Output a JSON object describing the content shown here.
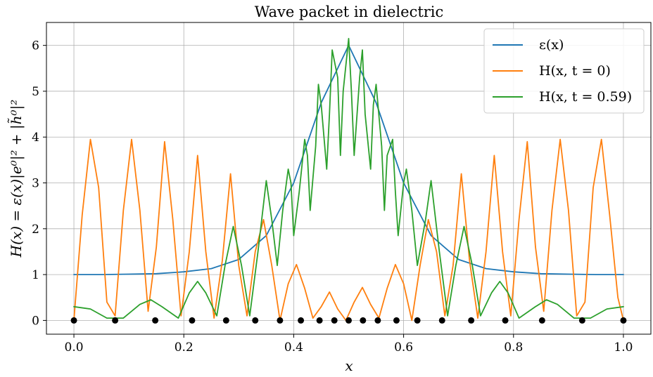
{
  "chart_data": {
    "type": "line",
    "title": "Wave packet in dielectric",
    "xlabel": "x",
    "ylabel": "H(x) = ε(x)|e⁰|² + |h̃⁰|²",
    "xlim": [
      -0.05,
      1.05
    ],
    "ylim": [
      -0.3,
      6.5
    ],
    "xticks": [
      0.0,
      0.2,
      0.4,
      0.6,
      0.8,
      1.0
    ],
    "xtick_labels": [
      "0.0",
      "0.2",
      "0.4",
      "0.6",
      "0.8",
      "1.0"
    ],
    "yticks": [
      0,
      1,
      2,
      3,
      4,
      5,
      6
    ],
    "ytick_labels": [
      "0",
      "1",
      "2",
      "3",
      "4",
      "5",
      "6"
    ],
    "grid": true,
    "legend_position": "top-right",
    "series": [
      {
        "name": "ε(x)",
        "color": "#1f77b4",
        "x": [
          0.0,
          0.05,
          0.1,
          0.15,
          0.2,
          0.25,
          0.3,
          0.35,
          0.4,
          0.45,
          0.5,
          0.55,
          0.6,
          0.65,
          0.7,
          0.75,
          0.8,
          0.85,
          0.9,
          0.95,
          1.0
        ],
        "y": [
          1.0,
          1.0,
          1.01,
          1.02,
          1.06,
          1.13,
          1.33,
          1.85,
          3.0,
          4.75,
          6.0,
          4.75,
          3.0,
          1.85,
          1.33,
          1.13,
          1.06,
          1.02,
          1.01,
          1.0,
          1.0
        ]
      },
      {
        "name": "H(x, t = 0)",
        "color": "#ff7f0e",
        "x": [
          0.0,
          0.015,
          0.03,
          0.045,
          0.06,
          0.075,
          0.09,
          0.105,
          0.12,
          0.135,
          0.15,
          0.165,
          0.18,
          0.195,
          0.21,
          0.225,
          0.24,
          0.255,
          0.27,
          0.285,
          0.3,
          0.315,
          0.33,
          0.345,
          0.36,
          0.375,
          0.39,
          0.405,
          0.42,
          0.435,
          0.45,
          0.465,
          0.48,
          0.495,
          0.51,
          0.525,
          0.54,
          0.555,
          0.57,
          0.585,
          0.6,
          0.615,
          0.63,
          0.645,
          0.66,
          0.675,
          0.69,
          0.705,
          0.72,
          0.735,
          0.75,
          0.765,
          0.78,
          0.795,
          0.81,
          0.825,
          0.84,
          0.855,
          0.87,
          0.885,
          0.9,
          0.915,
          0.93,
          0.945,
          0.96,
          0.975,
          0.99,
          1.0
        ],
        "y": [
          0.0,
          2.3,
          3.95,
          2.9,
          0.4,
          0.1,
          2.4,
          3.95,
          2.4,
          0.2,
          1.6,
          3.9,
          2.2,
          0.1,
          1.5,
          3.6,
          1.5,
          0.05,
          1.3,
          3.2,
          1.2,
          0.1,
          1.5,
          2.2,
          1.2,
          0.0,
          0.8,
          1.22,
          0.7,
          0.05,
          0.3,
          0.62,
          0.25,
          0.0,
          0.4,
          0.72,
          0.35,
          0.05,
          0.7,
          1.22,
          0.8,
          0.0,
          1.2,
          2.2,
          1.5,
          0.1,
          1.2,
          3.2,
          1.3,
          0.05,
          1.5,
          3.6,
          1.5,
          0.1,
          2.2,
          3.9,
          1.6,
          0.2,
          2.4,
          3.95,
          2.4,
          0.1,
          0.4,
          2.9,
          3.95,
          2.3,
          0.5,
          0.0
        ]
      },
      {
        "name": "H(x, t = 0.59)",
        "color": "#2ca02c",
        "x": [
          0.0,
          0.03,
          0.06,
          0.09,
          0.12,
          0.14,
          0.16,
          0.19,
          0.21,
          0.225,
          0.24,
          0.26,
          0.275,
          0.29,
          0.305,
          0.32,
          0.335,
          0.35,
          0.36,
          0.37,
          0.38,
          0.39,
          0.395,
          0.4,
          0.41,
          0.42,
          0.425,
          0.43,
          0.44,
          0.445,
          0.45,
          0.46,
          0.465,
          0.47,
          0.48,
          0.485,
          0.49,
          0.5,
          0.505,
          0.51,
          0.52,
          0.525,
          0.53,
          0.54,
          0.545,
          0.55,
          0.56,
          0.565,
          0.57,
          0.58,
          0.585,
          0.59,
          0.6,
          0.605,
          0.615,
          0.625,
          0.64,
          0.65,
          0.665,
          0.68,
          0.695,
          0.71,
          0.725,
          0.74,
          0.76,
          0.775,
          0.79,
          0.81,
          0.84,
          0.86,
          0.88,
          0.91,
          0.94,
          0.97,
          1.0
        ],
        "y": [
          0.3,
          0.25,
          0.05,
          0.05,
          0.35,
          0.45,
          0.3,
          0.05,
          0.6,
          0.85,
          0.6,
          0.1,
          1.2,
          2.05,
          1.2,
          0.1,
          1.5,
          3.05,
          2.2,
          1.2,
          2.4,
          3.3,
          3.0,
          1.85,
          2.8,
          3.95,
          3.6,
          2.4,
          3.8,
          5.15,
          4.7,
          3.3,
          4.5,
          5.9,
          5.3,
          3.6,
          5.0,
          6.15,
          5.0,
          3.6,
          5.3,
          5.9,
          4.5,
          3.3,
          4.7,
          5.15,
          3.8,
          2.4,
          3.6,
          3.95,
          2.8,
          1.85,
          3.0,
          3.3,
          2.4,
          1.2,
          2.2,
          3.05,
          1.5,
          0.1,
          1.2,
          2.05,
          1.2,
          0.1,
          0.6,
          0.85,
          0.6,
          0.05,
          0.3,
          0.45,
          0.35,
          0.05,
          0.05,
          0.25,
          0.3
        ]
      }
    ],
    "markers": {
      "color": "#000000",
      "x": [
        0.0,
        0.075,
        0.148,
        0.215,
        0.277,
        0.33,
        0.375,
        0.413,
        0.447,
        0.474,
        0.5,
        0.526,
        0.553,
        0.587,
        0.625,
        0.67,
        0.723,
        0.785,
        0.852,
        0.925,
        1.0
      ],
      "y": [
        0,
        0,
        0,
        0,
        0,
        0,
        0,
        0,
        0,
        0,
        0,
        0,
        0,
        0,
        0,
        0,
        0,
        0,
        0,
        0,
        0
      ]
    }
  }
}
